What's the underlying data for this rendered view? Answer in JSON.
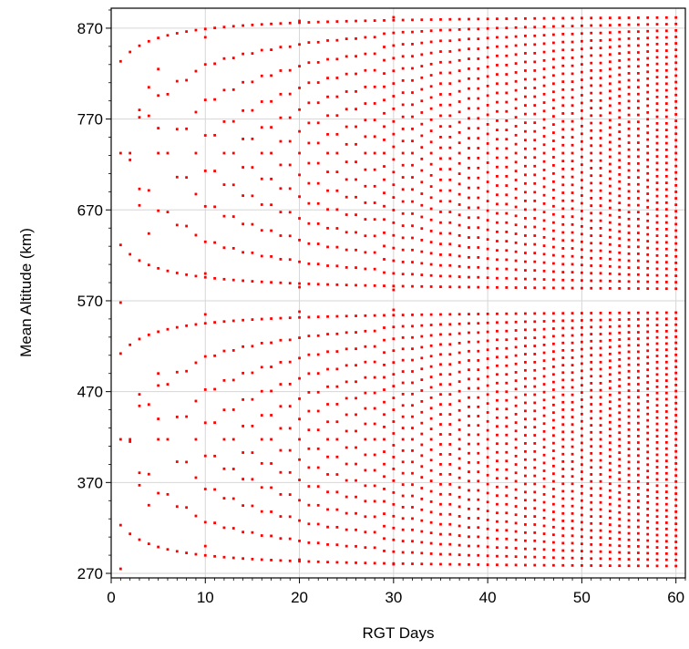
{
  "chart_data": {
    "type": "scatter",
    "title": "",
    "xlabel": "RGT Days",
    "ylabel": "Mean Altitude (km)",
    "xlim": [
      0,
      61
    ],
    "ylim": [
      265,
      892
    ],
    "x_ticks": [
      0,
      10,
      20,
      30,
      40,
      50,
      60
    ],
    "y_ticks": [
      270,
      370,
      470,
      570,
      670,
      770,
      870
    ],
    "grid": true,
    "legend": "none",
    "marker_color": "#ff0000",
    "x_day_range": [
      1,
      60
    ],
    "upper_band_km": [
      580,
      885
    ],
    "lower_band_km": [
      275,
      560
    ],
    "points": [
      {
        "x": 1,
        "y": 275
      },
      {
        "x": 1,
        "y": 568
      },
      {
        "x": 2,
        "y": 415
      },
      {
        "x": 2,
        "y": 725
      },
      {
        "x": 3,
        "y": 367
      },
      {
        "x": 3,
        "y": 467
      },
      {
        "x": 3,
        "y": 675
      },
      {
        "x": 3,
        "y": 780
      },
      {
        "x": 4,
        "y": 345
      },
      {
        "x": 4,
        "y": 644
      },
      {
        "x": 4,
        "y": 805
      },
      {
        "x": 5,
        "y": 440
      },
      {
        "x": 5,
        "y": 490
      },
      {
        "x": 5,
        "y": 760
      },
      {
        "x": 5,
        "y": 825
      },
      {
        "x": 10,
        "y": 300
      },
      {
        "x": 10,
        "y": 555
      },
      {
        "x": 10,
        "y": 600
      },
      {
        "x": 10,
        "y": 860
      },
      {
        "x": 20,
        "y": 285
      },
      {
        "x": 20,
        "y": 558
      },
      {
        "x": 20,
        "y": 585
      },
      {
        "x": 20,
        "y": 878
      },
      {
        "x": 30,
        "y": 280
      },
      {
        "x": 30,
        "y": 560
      },
      {
        "x": 30,
        "y": 582
      },
      {
        "x": 30,
        "y": 882
      }
    ]
  }
}
